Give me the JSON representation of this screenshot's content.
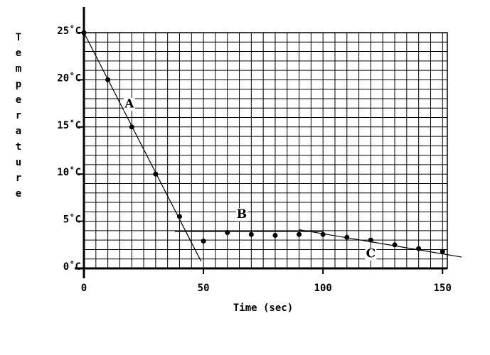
{
  "chart_data": {
    "type": "scatter",
    "ylabel": "Temperature",
    "xlabel": "Time (sec)",
    "xlim": [
      0,
      152
    ],
    "ylim": [
      0,
      25
    ],
    "xticks": [
      0,
      50,
      100,
      150
    ],
    "yticks": [
      {
        "value": 0,
        "label": "0˚C"
      },
      {
        "value": 5,
        "label": "5˚C"
      },
      {
        "value": 10,
        "label": "10˚C"
      },
      {
        "value": 15,
        "label": "15˚C"
      },
      {
        "value": 20,
        "label": "20˚C"
      },
      {
        "value": 25,
        "label": "25˚C"
      }
    ],
    "xgrid": [
      0,
      5,
      10,
      15,
      20,
      25,
      30,
      35,
      40,
      45,
      50,
      55,
      60,
      65,
      70,
      75,
      80,
      85,
      90,
      95,
      100,
      105,
      110,
      115,
      120,
      125,
      130,
      135,
      140,
      145,
      150
    ],
    "ygrid": [
      0,
      1,
      2,
      3,
      4,
      5,
      6,
      7,
      8,
      9,
      10,
      11,
      12,
      13,
      14,
      15,
      16,
      17,
      18,
      19,
      20,
      21,
      22,
      23,
      24,
      25
    ],
    "color": "#000000",
    "points": {
      "x": [
        0,
        10,
        20,
        30,
        40,
        50,
        60,
        70,
        80,
        90,
        100,
        110,
        120,
        130,
        140,
        150
      ],
      "values": [
        25,
        20,
        15,
        10,
        5.5,
        2.9,
        3.8,
        3.6,
        3.5,
        3.6,
        3.6,
        3.3,
        3,
        2.5,
        2.1,
        1.8
      ]
    },
    "lines": [
      {
        "x": [
          0,
          49
        ],
        "values": [
          25,
          0.75
        ]
      },
      {
        "x": [
          38,
          100
        ],
        "values": [
          3.9,
          3.9
        ]
      },
      {
        "x": [
          90,
          158
        ],
        "values": [
          4.1,
          1.2
        ]
      }
    ],
    "annotations": [
      {
        "text": "A",
        "x": 19,
        "y": 17.4
      },
      {
        "text": "B",
        "x": 66,
        "y": 5.7
      },
      {
        "text": "C",
        "x": 120,
        "y": 1.5
      }
    ]
  }
}
